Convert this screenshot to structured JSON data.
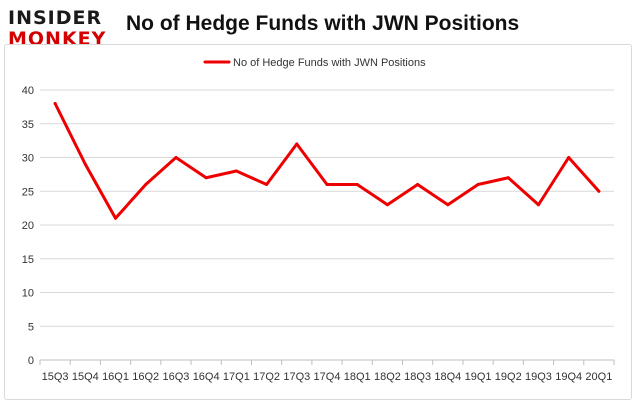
{
  "brand": {
    "logo_line1": "INSIDER",
    "logo_line2": "MONKEY"
  },
  "chart_data": {
    "type": "line",
    "title": "No of Hedge Funds with JWN Positions",
    "xlabel": "",
    "ylabel": "",
    "categories": [
      "15Q3",
      "15Q4",
      "16Q1",
      "16Q2",
      "16Q3",
      "16Q4",
      "17Q1",
      "17Q2",
      "17Q3",
      "17Q4",
      "18Q1",
      "18Q2",
      "18Q3",
      "18Q4",
      "19Q1",
      "19Q2",
      "19Q3",
      "19Q4",
      "20Q1"
    ],
    "series": [
      {
        "name": "No of Hedge Funds with JWN Positions",
        "values": [
          38,
          29,
          21,
          26,
          30,
          27,
          28,
          26,
          32,
          26,
          26,
          23,
          26,
          23,
          26,
          27,
          23,
          30,
          25
        ]
      }
    ],
    "ylim": [
      0,
      40
    ],
    "yticks": [
      0,
      5,
      10,
      15,
      20,
      25,
      30,
      35,
      40
    ],
    "grid": true,
    "legend_position": "top",
    "colors": {
      "line": "#ee0000",
      "grid": "#d9d9d9"
    }
  }
}
